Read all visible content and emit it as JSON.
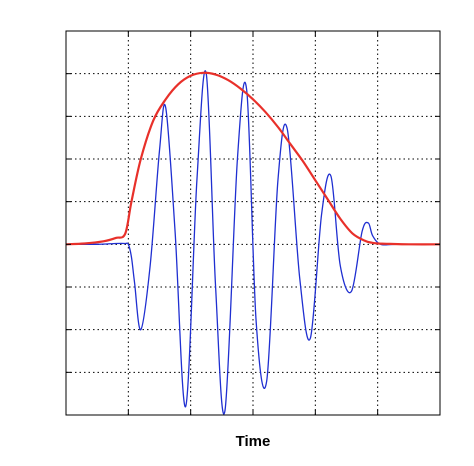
{
  "chart_data": {
    "type": "line",
    "title": "",
    "xlabel": "Time",
    "ylabel": "",
    "xlim": [
      0,
      6
    ],
    "ylim": [
      -4,
      5
    ],
    "grid": "dotted",
    "legend": "none",
    "x_ticks": [
      1,
      2,
      3,
      4,
      5
    ],
    "y_ticks": [
      -3,
      -2,
      -1,
      0,
      1,
      2,
      3,
      4
    ],
    "series": [
      {
        "color": "#e8302a",
        "style": "envelope",
        "x": [
          0,
          0.3,
          0.6,
          0.8,
          0.95,
          1.05,
          1.2,
          1.4,
          1.6,
          1.8,
          2.0,
          2.2,
          2.4,
          2.6,
          2.8,
          3.0,
          3.2,
          3.4,
          3.6,
          3.8,
          4.0,
          4.2,
          4.4,
          4.6,
          4.8,
          4.9,
          5.0,
          5.2,
          5.5,
          6.0
        ],
        "y": [
          0,
          0.02,
          0.07,
          0.15,
          0.25,
          1.0,
          2.0,
          2.9,
          3.4,
          3.75,
          3.95,
          4.02,
          3.98,
          3.85,
          3.65,
          3.4,
          3.1,
          2.75,
          2.35,
          1.95,
          1.5,
          1.05,
          0.6,
          0.25,
          0.08,
          0.04,
          0.02,
          0.01,
          0,
          0
        ]
      },
      {
        "color": "#1f2fd1",
        "style": "wave",
        "x": [
          0,
          0.5,
          0.8,
          0.95,
          1.0,
          1.05,
          1.1,
          1.2,
          1.35,
          1.5,
          1.6,
          1.75,
          1.92,
          2.1,
          2.25,
          2.4,
          2.55,
          2.75,
          2.9,
          3.05,
          3.22,
          3.4,
          3.55,
          3.75,
          3.92,
          4.1,
          4.25,
          4.4,
          4.58,
          4.75,
          4.85,
          4.92,
          5.05,
          5.3,
          6.0
        ],
        "y": [
          0,
          0,
          0.02,
          0.02,
          0,
          -0.3,
          -0.9,
          -2.0,
          -0.5,
          2.2,
          3.2,
          0.3,
          -3.8,
          1.5,
          4.0,
          -1.0,
          -3.9,
          2.0,
          3.6,
          -1.8,
          -3.2,
          1.5,
          2.7,
          -0.8,
          -2.2,
          0.7,
          1.6,
          -0.5,
          -1.1,
          0.3,
          0.5,
          0.2,
          0,
          0,
          0
        ]
      }
    ]
  }
}
